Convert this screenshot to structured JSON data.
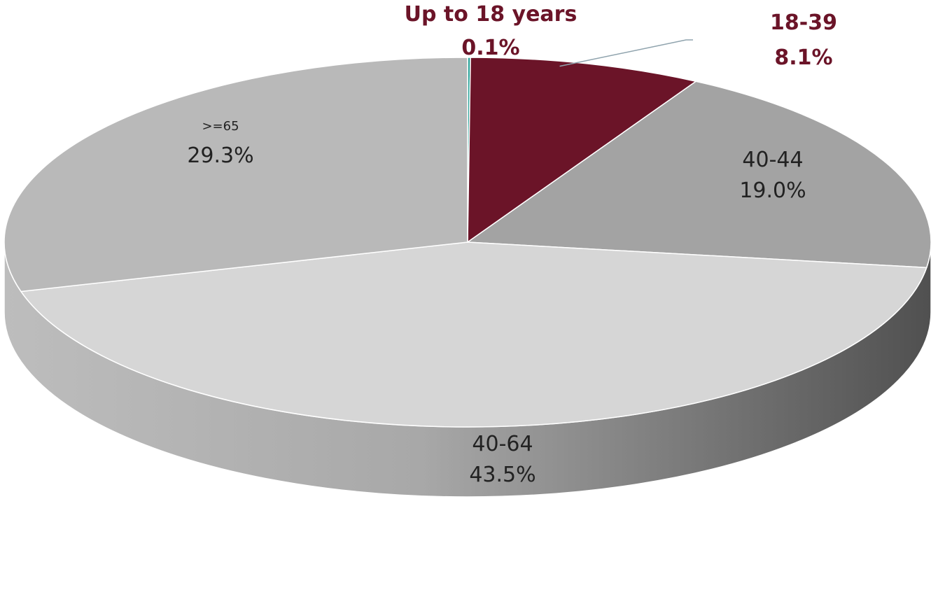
{
  "chart_data": {
    "type": "pie",
    "style": "3d",
    "slices": [
      {
        "label": "Up to 18 years",
        "value": 0.1,
        "display": "0.1%",
        "color": "#2aa198",
        "label_color": "#6b1428",
        "label_weight": "bold"
      },
      {
        "label": "18-39",
        "value": 8.1,
        "display": "8.1%",
        "color": "#6b1428",
        "label_color": "#6b1428",
        "label_weight": "bold"
      },
      {
        "label": "40-44",
        "value": 19.0,
        "display": "19.0%",
        "color": "#a3a3a3",
        "label_color": "#222222",
        "label_weight": "normal"
      },
      {
        "label": "40-64",
        "value": 43.5,
        "display": "43.5%",
        "color": "#d6d6d6",
        "label_color": "#222222",
        "label_weight": "normal"
      },
      {
        "label": ">=65",
        "value": 29.3,
        "display": "29.3%",
        "color": "#b9b9b9",
        "label_color": "#222222",
        "label_weight": "normal"
      }
    ],
    "start_direction": "top",
    "direction": "clockwise",
    "colors": {
      "side_light": "#bdbdbd",
      "side_dark": "#505050",
      "separator": "#ffffff",
      "leader_line": "#8fa3ad"
    }
  }
}
